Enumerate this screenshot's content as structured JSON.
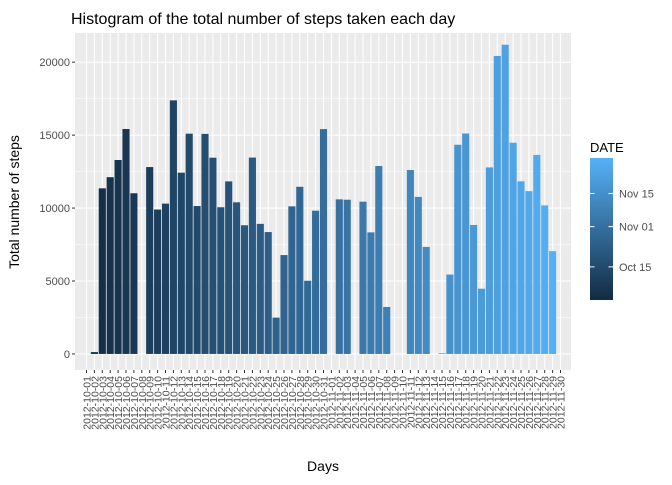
{
  "chart_data": {
    "type": "bar",
    "title": "Histogram of the total number of steps taken each day",
    "xlabel": "Days",
    "ylabel": "Total number of steps",
    "ylim": [
      0,
      22000
    ],
    "yticks": [
      0,
      5000,
      10000,
      15000,
      20000
    ],
    "ytick_labels": [
      "0",
      "5000",
      "10000",
      "15000",
      "20000"
    ],
    "grid": true,
    "categories": [
      "2012-10-01",
      "2012-10-02",
      "2012-10-03",
      "2012-10-04",
      "2012-10-05",
      "2012-10-06",
      "2012-10-07",
      "2012-10-08",
      "2012-10-09",
      "2012-10-10",
      "2012-10-11",
      "2012-10-12",
      "2012-10-13",
      "2012-10-14",
      "2012-10-15",
      "2012-10-16",
      "2012-10-17",
      "2012-10-18",
      "2012-10-19",
      "2012-10-20",
      "2012-10-21",
      "2012-10-22",
      "2012-10-23",
      "2012-10-24",
      "2012-10-25",
      "2012-10-26",
      "2012-10-27",
      "2012-10-28",
      "2012-10-29",
      "2012-10-30",
      "2012-10-31",
      "2012-11-01",
      "2012-11-02",
      "2012-11-03",
      "2012-11-04",
      "2012-11-05",
      "2012-11-06",
      "2012-11-07",
      "2012-11-08",
      "2012-11-09",
      "2012-11-10",
      "2012-11-11",
      "2012-11-12",
      "2012-11-13",
      "2012-11-14",
      "2012-11-15",
      "2012-11-16",
      "2012-11-17",
      "2012-11-18",
      "2012-11-19",
      "2012-11-20",
      "2012-11-21",
      "2012-11-22",
      "2012-11-23",
      "2012-11-24",
      "2012-11-25",
      "2012-11-26",
      "2012-11-27",
      "2012-11-28",
      "2012-11-29",
      "2012-11-30"
    ],
    "values": [
      0,
      126,
      11352,
      12116,
      13294,
      15420,
      11015,
      0,
      12811,
      9900,
      10304,
      17382,
      12426,
      15098,
      10139,
      15084,
      13452,
      10056,
      11829,
      10395,
      8821,
      13460,
      8918,
      8355,
      2492,
      6778,
      10119,
      11458,
      5018,
      9819,
      15414,
      0,
      10600,
      10571,
      0,
      10439,
      8334,
      12883,
      3219,
      0,
      0,
      12608,
      10765,
      7336,
      0,
      41,
      5441,
      14339,
      15110,
      8841,
      4472,
      12787,
      20427,
      21194,
      14478,
      11834,
      11162,
      13646,
      10183,
      7047,
      0
    ],
    "legend": {
      "title": "DATE",
      "placement": "right",
      "labels": [
        "Oct 15",
        "Nov 01",
        "Nov 15"
      ],
      "label_dates": [
        "2012-10-15",
        "2012-11-01",
        "2012-11-15"
      ],
      "color_low": "#132B43",
      "color_high": "#56B1F7"
    },
    "panel_background": "#EBEBEB",
    "grid_color": "#FFFFFF"
  }
}
